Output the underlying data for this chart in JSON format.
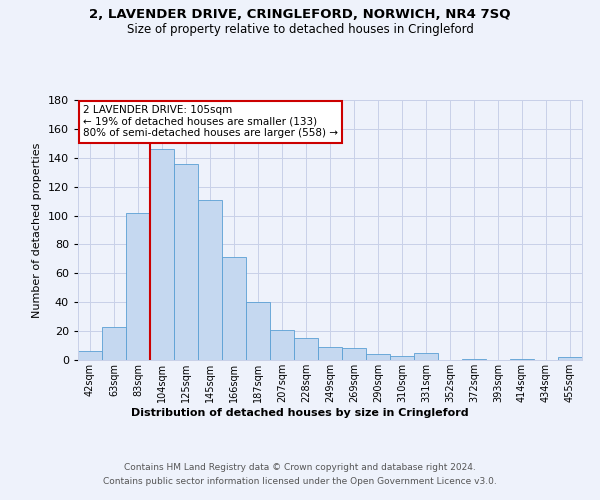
{
  "title": "2, LAVENDER DRIVE, CRINGLEFORD, NORWICH, NR4 7SQ",
  "subtitle": "Size of property relative to detached houses in Cringleford",
  "xlabel_bottom": "Distribution of detached houses by size in Cringleford",
  "ylabel": "Number of detached properties",
  "categories": [
    "42sqm",
    "63sqm",
    "83sqm",
    "104sqm",
    "125sqm",
    "145sqm",
    "166sqm",
    "187sqm",
    "207sqm",
    "228sqm",
    "249sqm",
    "269sqm",
    "290sqm",
    "310sqm",
    "331sqm",
    "352sqm",
    "372sqm",
    "393sqm",
    "414sqm",
    "434sqm",
    "455sqm"
  ],
  "values": [
    6,
    23,
    102,
    146,
    136,
    111,
    71,
    40,
    21,
    15,
    9,
    8,
    4,
    3,
    5,
    0,
    1,
    0,
    1,
    0,
    2
  ],
  "bar_color": "#c5d8f0",
  "bar_edge_color": "#5a9fd4",
  "vline_x_index": 3,
  "vline_color": "#cc0000",
  "annotation_text": "2 LAVENDER DRIVE: 105sqm\n← 19% of detached houses are smaller (133)\n80% of semi-detached houses are larger (558) →",
  "annotation_box_color": "white",
  "annotation_box_edge_color": "#cc0000",
  "ylim": [
    0,
    180
  ],
  "yticks": [
    0,
    20,
    40,
    60,
    80,
    100,
    120,
    140,
    160,
    180
  ],
  "background_color": "#eef2fb",
  "plot_background": "#eef2fb",
  "grid_color": "#c8d0e8",
  "footer_line1": "Contains HM Land Registry data © Crown copyright and database right 2024.",
  "footer_line2": "Contains public sector information licensed under the Open Government Licence v3.0."
}
